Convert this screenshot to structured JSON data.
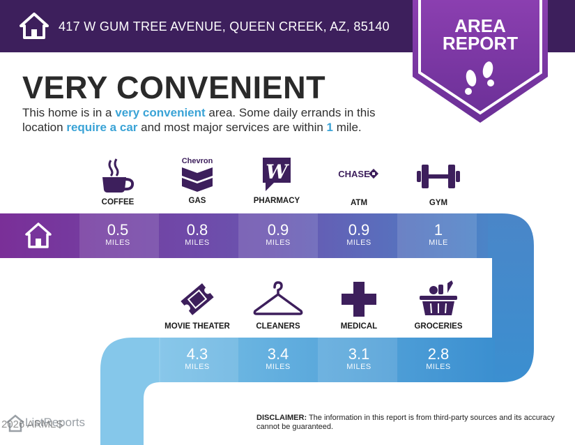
{
  "header": {
    "address": "417 W GUM TREE AVENUE, QUEEN CREEK, AZ, 85140",
    "badge_line1": "AREA",
    "badge_line2": "REPORT"
  },
  "summary": {
    "headline": "VERY CONVENIENT",
    "desc_part1": "This home is in a ",
    "desc_hl1": "very convenient",
    "desc_part2": " area. Some daily errands in this location ",
    "desc_hl2": "require a car",
    "desc_part3": " and most major services are within ",
    "desc_hl3": "1",
    "desc_part4": " mile."
  },
  "row1": [
    {
      "label": "COFFEE",
      "icon": "coffee-cup-icon",
      "value": "0.5",
      "unit": "MILES"
    },
    {
      "label": "GAS",
      "icon": "chevron-logo-icon",
      "brand": "Chevron",
      "value": "0.8",
      "unit": "MILES"
    },
    {
      "label": "PHARMACY",
      "icon": "walgreens-logo-icon",
      "value": "0.9",
      "unit": "MILES"
    },
    {
      "label": "ATM",
      "icon": "chase-logo-icon",
      "brand": "CHASE",
      "value": "0.9",
      "unit": "MILES"
    },
    {
      "label": "GYM",
      "icon": "dumbbell-icon",
      "value": "1",
      "unit": "MILE"
    }
  ],
  "row2": [
    {
      "label": "MOVIE THEATER",
      "icon": "ticket-icon",
      "value": "4.3",
      "unit": "MILES"
    },
    {
      "label": "CLEANERS",
      "icon": "hanger-icon",
      "value": "3.4",
      "unit": "MILES"
    },
    {
      "label": "MEDICAL",
      "icon": "medical-cross-icon",
      "value": "3.1",
      "unit": "MILES"
    },
    {
      "label": "GROCERIES",
      "icon": "grocery-basket-icon",
      "value": "2.8",
      "unit": "MILES"
    }
  ],
  "footer": {
    "logo_text": "ListReports",
    "copyright": "2026 ARMLS",
    "disclaimer_label": "DISCLAIMER:",
    "disclaimer_text": " The information in this report is from third-party sources and its accuracy cannot be guaranteed."
  },
  "colors": {
    "header_bg": "#3d1f5c",
    "purple": "#7b3aa0",
    "blue": "#3b8fd0",
    "light_blue": "#8cc9ea",
    "highlight": "#3aa3d6",
    "icon": "#3d1f5c"
  }
}
